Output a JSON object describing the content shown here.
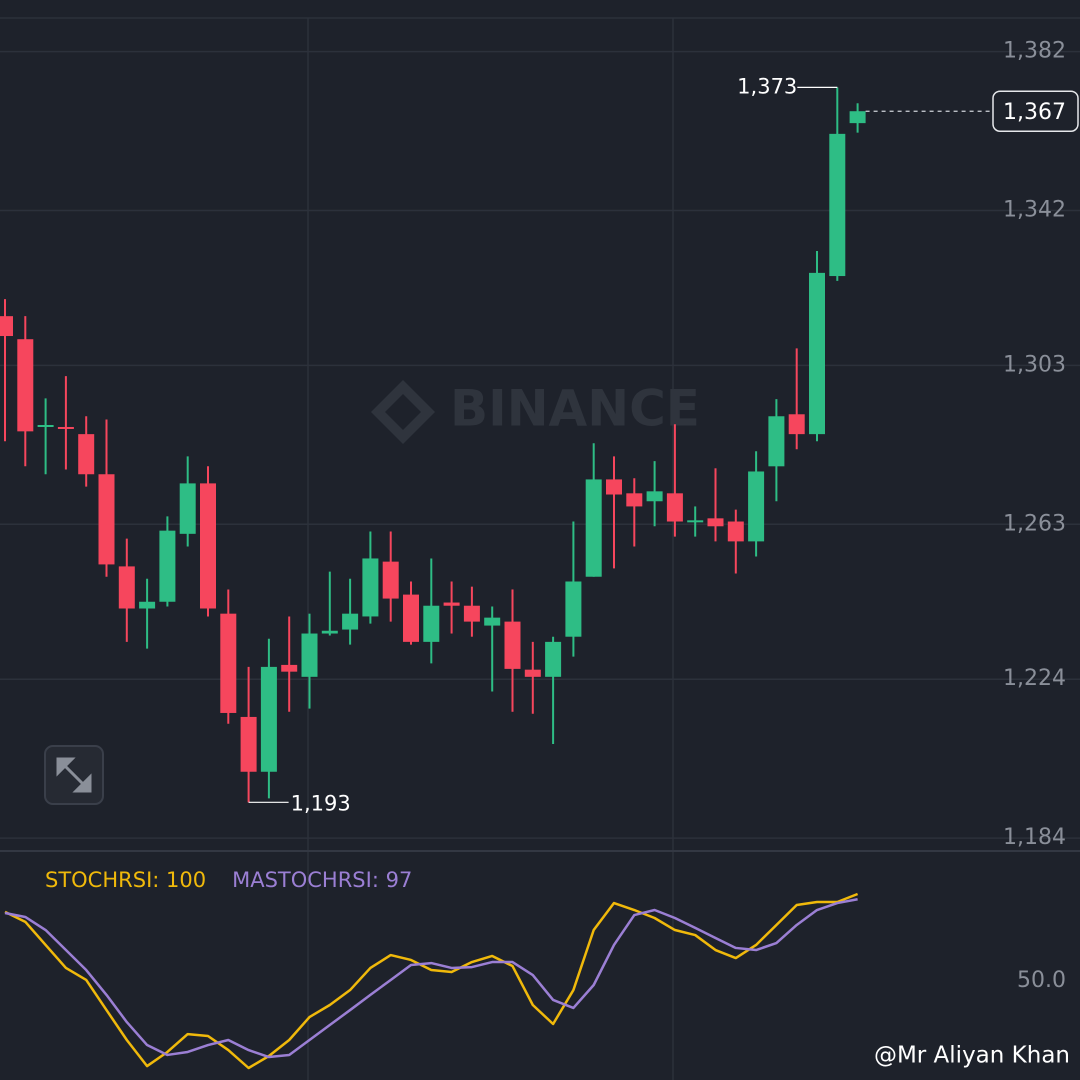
{
  "chart_data": [
    {
      "type": "candlestick",
      "watermark": "BINANCE",
      "max_label": "1,373",
      "min_label": "1,193",
      "last_label": "1,367",
      "up_color": "#2ebd85",
      "down_color": "#f6465d",
      "ylim": [
        1181,
        1395
      ],
      "yticks": [
        {
          "value": 1382,
          "label": "1,382"
        },
        {
          "value": 1342,
          "label": "1,342"
        },
        {
          "value": 1303,
          "label": "1,303"
        },
        {
          "value": 1263,
          "label": "1,263"
        },
        {
          "value": 1224,
          "label": "1,224"
        },
        {
          "value": 1184,
          "label": "1,184"
        }
      ],
      "grid": true,
      "open": [
        1315.4,
        1309.6,
        1287.5,
        1287.5,
        1285.7,
        1275.6,
        1252.4,
        1241.8,
        1243.5,
        1260.6,
        1273.3,
        1240.5,
        1214.5,
        1200.7,
        1227.6,
        1224.6,
        1235.5,
        1236.5,
        1239.8,
        1253.6,
        1245.3,
        1233.4,
        1243.3,
        1242.5,
        1237.5,
        1238.5,
        1226.4,
        1224.6,
        1234.7,
        1249.8,
        1274.3,
        1270.8,
        1268.8,
        1270.8,
        1263.5,
        1264.5,
        1263.7,
        1258.7,
        1277.6,
        1290.7,
        1285.7,
        1325.5,
        1364
      ],
      "high": [
        1319.7,
        1315.4,
        1294.7,
        1300.3,
        1290.2,
        1289.4,
        1259.4,
        1249.3,
        1265,
        1280.1,
        1277.6,
        1246.6,
        1227.1,
        1234.2,
        1239.8,
        1240.5,
        1251.1,
        1249.3,
        1261.2,
        1261.2,
        1248.6,
        1254.4,
        1248.6,
        1247.3,
        1242.3,
        1246.6,
        1233.4,
        1234.7,
        1263.7,
        1283.4,
        1280.1,
        1274.6,
        1278.9,
        1288.2,
        1267.5,
        1277.1,
        1266.7,
        1281.4,
        1294.5,
        1307.3,
        1331.8,
        1373,
        1369
      ],
      "low": [
        1283.9,
        1277.6,
        1275.6,
        1276.8,
        1272.5,
        1249.8,
        1233.4,
        1231.7,
        1242.3,
        1257.4,
        1239.8,
        1212.8,
        1193,
        1194,
        1215.8,
        1216.6,
        1235,
        1232.7,
        1238,
        1238.5,
        1232.7,
        1228,
        1235.5,
        1234.7,
        1220.9,
        1215.8,
        1215.3,
        1207.7,
        1229.7,
        1249.8,
        1251.9,
        1257.4,
        1262.5,
        1259.9,
        1259.9,
        1258.7,
        1250.6,
        1254.9,
        1268.8,
        1281.9,
        1283.9,
        1324.3,
        1361.6
      ],
      "close": [
        1310.4,
        1286.4,
        1288,
        1287,
        1275.6,
        1252.9,
        1241.8,
        1243.5,
        1261.4,
        1273.3,
        1241.8,
        1215.5,
        1200.7,
        1227.1,
        1225.9,
        1235.5,
        1236.2,
        1240.5,
        1254.4,
        1244.3,
        1233.4,
        1242.5,
        1242.5,
        1238.5,
        1239.5,
        1226.6,
        1224.6,
        1233.4,
        1248.6,
        1274.3,
        1270.5,
        1267.5,
        1271.3,
        1263.7,
        1264,
        1262.5,
        1258.7,
        1276.3,
        1290.2,
        1285.7,
        1326.3,
        1361.3,
        1367
      ]
    },
    {
      "type": "line",
      "credit": "@Mr Aliyan Khan",
      "ylim": [
        0,
        100
      ],
      "yticks": [
        {
          "value": 50,
          "label": "50.0"
        }
      ],
      "series": [
        {
          "name": "STOCHRSI: 100",
          "color": "#f0b90b",
          "values": [
            89.7,
            84.0,
            70.7,
            57.5,
            50.6,
            33.3,
            16.1,
            1.1,
            9.2,
            19.5,
            18.4,
            10.3,
            0,
            6.9,
            16.1,
            29.3,
            36.2,
            44.8,
            57.5,
            64.9,
            62.1,
            56.3,
            55.2,
            60.9,
            64.4,
            58.6,
            36.2,
            25.3,
            44.8,
            79.3,
            94.8,
            90.8,
            86.2,
            79.3,
            76.4,
            67.8,
            63.2,
            70.7,
            82.2,
            93.7,
            95.4,
            95.4,
            100
          ]
        },
        {
          "name": "MASTOCHRSI: 97",
          "color": "#9b7fd4",
          "values": [
            89.1,
            86.8,
            79.3,
            67.8,
            56.3,
            42.0,
            26.4,
            13.2,
            7.5,
            9.2,
            13.2,
            16.1,
            10.3,
            6.3,
            7.5,
            16.1,
            24.7,
            33.3,
            42.0,
            50.6,
            59.2,
            60.3,
            57.5,
            58.0,
            60.9,
            60.9,
            53.4,
            39.1,
            34.5,
            47.7,
            70.7,
            87.9,
            90.8,
            86.2,
            80.5,
            74.7,
            69.0,
            67.8,
            71.8,
            82.2,
            90.8,
            94.8,
            97
          ]
        }
      ]
    }
  ]
}
